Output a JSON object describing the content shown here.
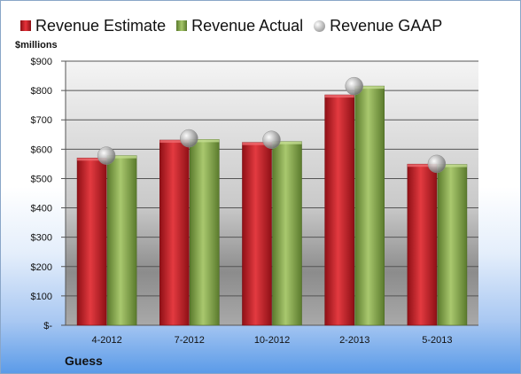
{
  "chart_data": {
    "type": "bar",
    "categories": [
      "4-2012",
      "7-2012",
      "10-2012",
      "2-2013",
      "5-2013"
    ],
    "series": [
      {
        "name": "Revenue Estimate",
        "values": [
          570,
          631,
          623,
          785,
          549
        ],
        "color": "#d0202a"
      },
      {
        "name": "Revenue Actual",
        "values": [
          578,
          633,
          626,
          815,
          548
        ],
        "color": "#8aad4f"
      },
      {
        "name": "Revenue GAAP",
        "values": [
          578,
          637,
          632,
          815,
          550
        ],
        "color": "#a6a6a6",
        "marker": "circle"
      }
    ],
    "ylabel": "$millions",
    "ylim": [
      0,
      900
    ],
    "yticks": [
      0,
      100,
      200,
      300,
      400,
      500,
      600,
      700,
      800,
      900
    ],
    "ytick_labels": [
      "$-",
      "$100",
      "$200",
      "$300",
      "$400",
      "$500",
      "$600",
      "$700",
      "$800",
      "$900"
    ],
    "grid": true,
    "legend_position": "top"
  },
  "footer": {
    "company": "Guess"
  }
}
